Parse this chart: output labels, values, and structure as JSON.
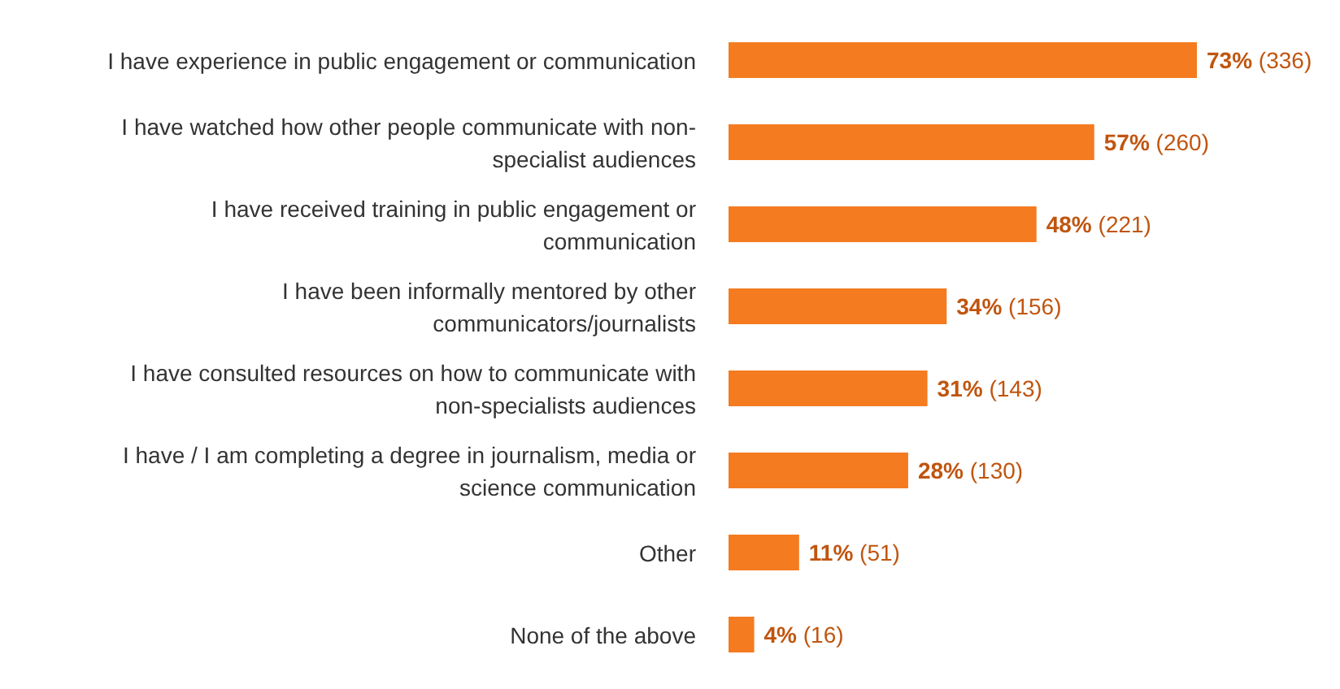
{
  "chart_data": {
    "type": "bar",
    "orientation": "horizontal",
    "categories": [
      "I have experience in public engagement or communication",
      "I have watched how other people communicate with non-specialist audiences",
      "I have received training in public engagement or communication",
      "I have been informally mentored by other communicators/journalists",
      "I have consulted resources on how to communicate with non-specialists audiences",
      "I have / I am completing a degree in journalism, media or science communication",
      "Other",
      "None of the above"
    ],
    "values": [
      73,
      57,
      48,
      34,
      31,
      28,
      11,
      4
    ],
    "value_labels": [
      "73% (336)",
      "57% (260)",
      "48% (221)",
      "34% (156)",
      "31% (143)",
      "28% (130)",
      "11% (51)",
      "4% (16)"
    ],
    "color": "#f47b20"
  }
}
